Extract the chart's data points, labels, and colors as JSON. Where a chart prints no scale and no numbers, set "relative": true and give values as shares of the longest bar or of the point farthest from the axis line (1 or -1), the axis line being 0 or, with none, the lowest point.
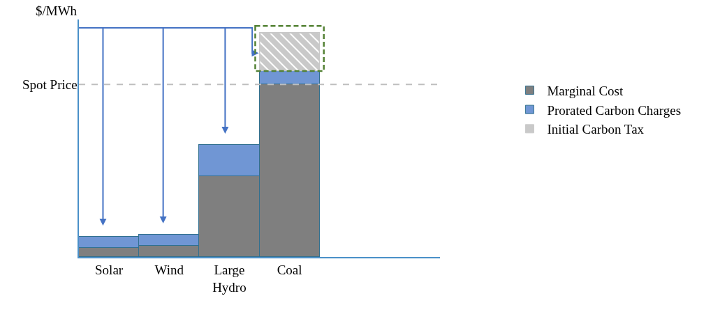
{
  "chart_data": {
    "type": "bar",
    "stacked": true,
    "relative": true,
    "ylabel": "$/MWh",
    "categories": [
      "Solar",
      "Wind",
      "Large Hydro",
      "Coal"
    ],
    "series": [
      {
        "name": "Marginal Cost",
        "color": "#7f7f7f",
        "values": [
          0.04,
          0.05,
          0.36,
          0.77
        ]
      },
      {
        "name": "Prorated Carbon Charges",
        "color": "#7096d4",
        "values": [
          0.05,
          0.05,
          0.14,
          0.06
        ]
      },
      {
        "name": "Initial Carbon Tax",
        "color": "#c9c9c9",
        "values": [
          null,
          null,
          null,
          0.17
        ]
      }
    ],
    "ref_lines": [
      {
        "axis": "y",
        "value": 0.77,
        "label": "Spot Price",
        "color": "#bfbfbf",
        "line_style": "dashed"
      }
    ],
    "legend": "right",
    "grid": false
  }
}
